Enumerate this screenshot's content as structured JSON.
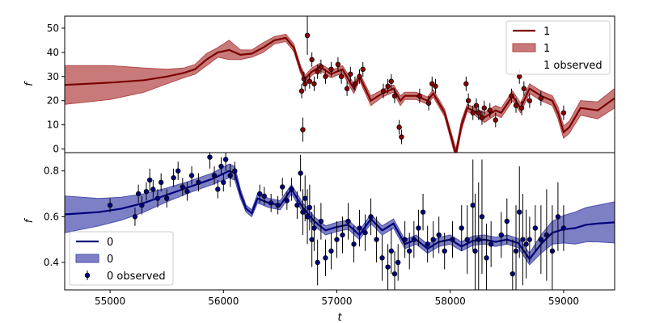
{
  "chart_data": [
    {
      "type": "line",
      "xlim": [
        54600,
        59450
      ],
      "ylim": [
        -1.5,
        55
      ],
      "yticks": [
        0,
        10,
        20,
        30,
        40,
        50
      ],
      "ylabel": "f",
      "grid": false,
      "legend": {
        "placement": "top-right",
        "entries": [
          {
            "kind": "line",
            "label": "1"
          },
          {
            "kind": "band",
            "label": "1"
          },
          {
            "kind": "points",
            "label": "1 observed"
          }
        ]
      },
      "colors": {
        "line": "#7b0000",
        "band": "#b34747",
        "points": "#8b0000"
      },
      "model": {
        "x": [
          54600,
          55000,
          55300,
          55500,
          55650,
          55750,
          55850,
          55950,
          56050,
          56150,
          56250,
          56350,
          56450,
          56550,
          56620,
          56680,
          56720,
          56780,
          56850,
          56950,
          57050,
          57150,
          57200,
          57300,
          57400,
          57500,
          57560,
          57600,
          57700,
          57800,
          57850,
          57950,
          58050,
          58100,
          58150,
          58200,
          58300,
          58400,
          58450,
          58550,
          58620,
          58700,
          58800,
          58900,
          58950,
          59000,
          59050,
          59150,
          59300,
          59450
        ],
        "y": [
          26.5,
          27.5,
          28.5,
          30,
          31.5,
          33,
          37,
          40,
          41,
          39,
          39.5,
          42,
          45,
          46,
          42,
          33,
          29,
          32,
          34,
          31,
          33,
          25,
          30,
          20,
          23,
          25,
          20,
          22,
          22,
          20,
          23,
          15,
          -2,
          10,
          17,
          16,
          13,
          16,
          15,
          22,
          17,
          25,
          22,
          20,
          15,
          7,
          9,
          17,
          16,
          21
        ],
        "band": [
          8,
          7,
          5,
          3,
          2,
          2,
          2.5,
          2,
          4,
          2,
          1.5,
          2,
          1.5,
          1.5,
          1.5,
          1.5,
          1.5,
          1.5,
          1.5,
          1.5,
          1.5,
          2,
          1.5,
          2,
          1.5,
          1.5,
          2,
          1.5,
          1.5,
          1.5,
          1.5,
          1.5,
          2,
          2,
          1.5,
          1.5,
          2,
          2,
          2,
          2,
          2,
          2,
          2,
          2,
          2.5,
          2.5,
          2.5,
          3,
          3.5,
          4
        ]
      },
      "observed": {
        "x": [
          56690,
          56700,
          56710,
          56720,
          56740,
          56760,
          56780,
          56800,
          56830,
          56860,
          56900,
          56950,
          57010,
          57040,
          57090,
          57120,
          57160,
          57200,
          57230,
          57410,
          57450,
          57480,
          57510,
          57550,
          57570,
          57730,
          57810,
          57840,
          57870,
          58140,
          58160,
          58200,
          58230,
          58250,
          58280,
          58300,
          58350,
          58400,
          58540,
          58580,
          58610,
          58630,
          58650,
          58700,
          58800,
          59000
        ],
        "y": [
          24,
          8,
          29,
          27,
          47,
          28,
          37,
          27,
          32,
          34,
          30,
          33,
          35,
          30,
          25,
          31,
          27,
          30,
          33,
          24,
          26,
          28,
          22,
          9,
          5,
          22,
          19,
          27,
          26,
          27,
          20,
          15,
          18,
          15,
          13,
          17,
          16,
          12,
          22,
          18,
          30,
          17,
          25,
          20,
          21,
          15
        ],
        "err": [
          3,
          5,
          3,
          3,
          8,
          3,
          3,
          3,
          3,
          3,
          3,
          3,
          3,
          3,
          3,
          3,
          3,
          3,
          3,
          3,
          3,
          3,
          3,
          3,
          3,
          3,
          3,
          3,
          3,
          3,
          3,
          3,
          3,
          3,
          3,
          3,
          3,
          3,
          3,
          3,
          3,
          3,
          3,
          3,
          3,
          3
        ]
      }
    },
    {
      "type": "line",
      "xlim": [
        54600,
        59450
      ],
      "ylim": [
        0.28,
        0.88
      ],
      "yticks": [
        0.4,
        0.6,
        0.8
      ],
      "xticks": [
        55000,
        56000,
        57000,
        58000,
        59000
      ],
      "xlabel": "t",
      "ylabel": "f",
      "grid": false,
      "legend": {
        "placement": "bottom-left",
        "entries": [
          {
            "kind": "line",
            "label": "0"
          },
          {
            "kind": "band",
            "label": "0"
          },
          {
            "kind": "points",
            "label": "0 observed"
          }
        ]
      },
      "colors": {
        "line": "#00007b",
        "band": "#4b4fae",
        "points": "#000080"
      },
      "model": {
        "x": [
          54600,
          54900,
          55100,
          55300,
          55500,
          55700,
          55900,
          56050,
          56100,
          56150,
          56200,
          56250,
          56300,
          56400,
          56500,
          56600,
          56700,
          56800,
          56900,
          57000,
          57100,
          57200,
          57300,
          57400,
          57500,
          57600,
          57700,
          57800,
          57900,
          58000,
          58100,
          58200,
          58300,
          58400,
          58500,
          58600,
          58700,
          58800,
          58900,
          59000,
          59100,
          59200,
          59300,
          59450
        ],
        "y": [
          0.61,
          0.62,
          0.635,
          0.66,
          0.695,
          0.73,
          0.765,
          0.8,
          0.79,
          0.7,
          0.635,
          0.615,
          0.68,
          0.66,
          0.65,
          0.72,
          0.64,
          0.58,
          0.54,
          0.555,
          0.565,
          0.52,
          0.59,
          0.54,
          0.57,
          0.48,
          0.5,
          0.46,
          0.49,
          0.5,
          0.47,
          0.495,
          0.5,
          0.49,
          0.5,
          0.485,
          0.415,
          0.48,
          0.53,
          0.545,
          0.55,
          0.565,
          0.57,
          0.575
        ],
        "band": [
          0.08,
          0.06,
          0.05,
          0.04,
          0.03,
          0.025,
          0.025,
          0.03,
          0.03,
          0.02,
          0.015,
          0.015,
          0.02,
          0.02,
          0.02,
          0.02,
          0.02,
          0.02,
          0.02,
          0.02,
          0.02,
          0.02,
          0.02,
          0.02,
          0.02,
          0.02,
          0.02,
          0.02,
          0.02,
          0.02,
          0.02,
          0.02,
          0.02,
          0.02,
          0.02,
          0.02,
          0.025,
          0.04,
          0.05,
          0.06,
          0.07,
          0.075,
          0.08,
          0.09
        ]
      },
      "observed": {
        "x": [
          55000,
          55220,
          55250,
          55280,
          55320,
          55350,
          55380,
          55420,
          55450,
          55500,
          55560,
          55600,
          55640,
          55680,
          55720,
          55780,
          55880,
          55920,
          55950,
          55980,
          56000,
          56020,
          56060,
          56100,
          56320,
          56360,
          56420,
          56480,
          56520,
          56560,
          56600,
          56650,
          56680,
          56700,
          56720,
          56740,
          56760,
          56780,
          56800,
          56830,
          56860,
          56900,
          56950,
          57000,
          57050,
          57100,
          57150,
          57200,
          57250,
          57300,
          57350,
          57400,
          57450,
          57480,
          57510,
          57540,
          57600,
          57640,
          57680,
          57720,
          57760,
          57800,
          57850,
          57900,
          57950,
          58020,
          58100,
          58150,
          58200,
          58220,
          58250,
          58280,
          58320,
          58360,
          58450,
          58500,
          58550,
          58580,
          58610,
          58640,
          58670,
          58700,
          58750,
          58800,
          58850,
          58900,
          58950,
          59000
        ],
        "y": [
          0.65,
          0.6,
          0.7,
          0.65,
          0.71,
          0.76,
          0.72,
          0.68,
          0.75,
          0.68,
          0.77,
          0.8,
          0.73,
          0.71,
          0.78,
          0.75,
          0.86,
          0.78,
          0.72,
          0.82,
          0.75,
          0.85,
          0.78,
          0.8,
          0.7,
          0.69,
          0.66,
          0.65,
          0.73,
          0.67,
          0.72,
          0.65,
          0.79,
          0.62,
          0.68,
          0.6,
          0.64,
          0.5,
          0.55,
          0.4,
          0.58,
          0.42,
          0.45,
          0.5,
          0.52,
          0.58,
          0.48,
          0.55,
          0.53,
          0.6,
          0.5,
          0.42,
          0.38,
          0.45,
          0.35,
          0.4,
          0.5,
          0.45,
          0.5,
          0.55,
          0.62,
          0.48,
          0.5,
          0.52,
          0.45,
          0.5,
          0.55,
          0.5,
          0.65,
          0.45,
          0.5,
          0.6,
          0.42,
          0.48,
          0.52,
          0.58,
          0.35,
          0.45,
          0.62,
          0.5,
          0.48,
          0.5,
          0.55,
          0.5,
          0.52,
          0.45,
          0.6,
          0.55
        ],
        "err": [
          0.03,
          0.04,
          0.04,
          0.04,
          0.04,
          0.05,
          0.04,
          0.04,
          0.04,
          0.04,
          0.04,
          0.04,
          0.04,
          0.04,
          0.04,
          0.04,
          0.05,
          0.04,
          0.04,
          0.04,
          0.04,
          0.05,
          0.05,
          0.04,
          0.04,
          0.04,
          0.04,
          0.04,
          0.04,
          0.04,
          0.05,
          0.06,
          0.08,
          0.1,
          0.1,
          0.12,
          0.1,
          0.12,
          0.1,
          0.1,
          0.08,
          0.08,
          0.08,
          0.08,
          0.08,
          0.08,
          0.08,
          0.08,
          0.08,
          0.08,
          0.1,
          0.1,
          0.1,
          0.1,
          0.1,
          0.08,
          0.08,
          0.08,
          0.08,
          0.08,
          0.08,
          0.08,
          0.08,
          0.08,
          0.08,
          0.08,
          0.1,
          0.15,
          0.2,
          0.25,
          0.25,
          0.25,
          0.15,
          0.1,
          0.1,
          0.1,
          0.15,
          0.2,
          0.2,
          0.2,
          0.15,
          0.1,
          0.1,
          0.15,
          0.2,
          0.2,
          0.15,
          0.1
        ]
      }
    }
  ]
}
